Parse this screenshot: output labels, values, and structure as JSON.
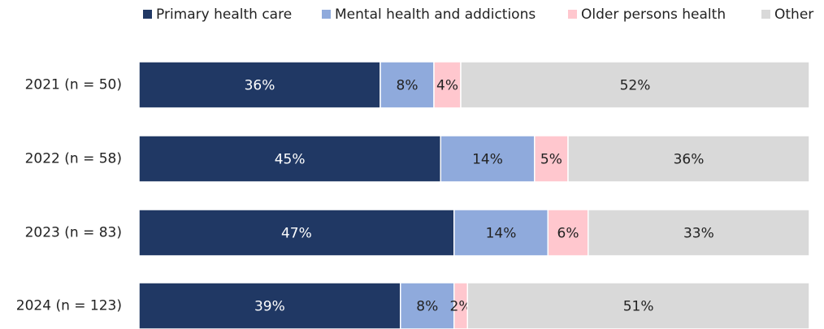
{
  "chart_data": {
    "type": "bar",
    "orientation": "horizontal",
    "stacked": true,
    "categories": [
      "2021 (n = 50)",
      "2022 (n = 58)",
      "2023 (n = 83)",
      "2024 (n = 123)"
    ],
    "legend": "top-right",
    "series": [
      {
        "name": "Primary health care",
        "color": "#203864",
        "values": [
          36,
          45,
          47,
          39
        ],
        "value_labels": [
          "36%",
          "45%",
          "47%",
          "39%"
        ]
      },
      {
        "name": "Mental health and addictions",
        "color": "#8faadc",
        "values": [
          8,
          14,
          14,
          8
        ],
        "value_labels": [
          "8%",
          "14%",
          "14%",
          "8%"
        ]
      },
      {
        "name": "Older persons health",
        "color": "#ffc7ce",
        "values": [
          4,
          5,
          6,
          2
        ],
        "value_labels": [
          "4%",
          "5%",
          "6%",
          "2%"
        ]
      },
      {
        "name": "Other",
        "color": "#d9d9d9",
        "values": [
          52,
          36,
          33,
          51
        ],
        "value_labels": [
          "52%",
          "36%",
          "33%",
          "51%"
        ]
      }
    ]
  }
}
